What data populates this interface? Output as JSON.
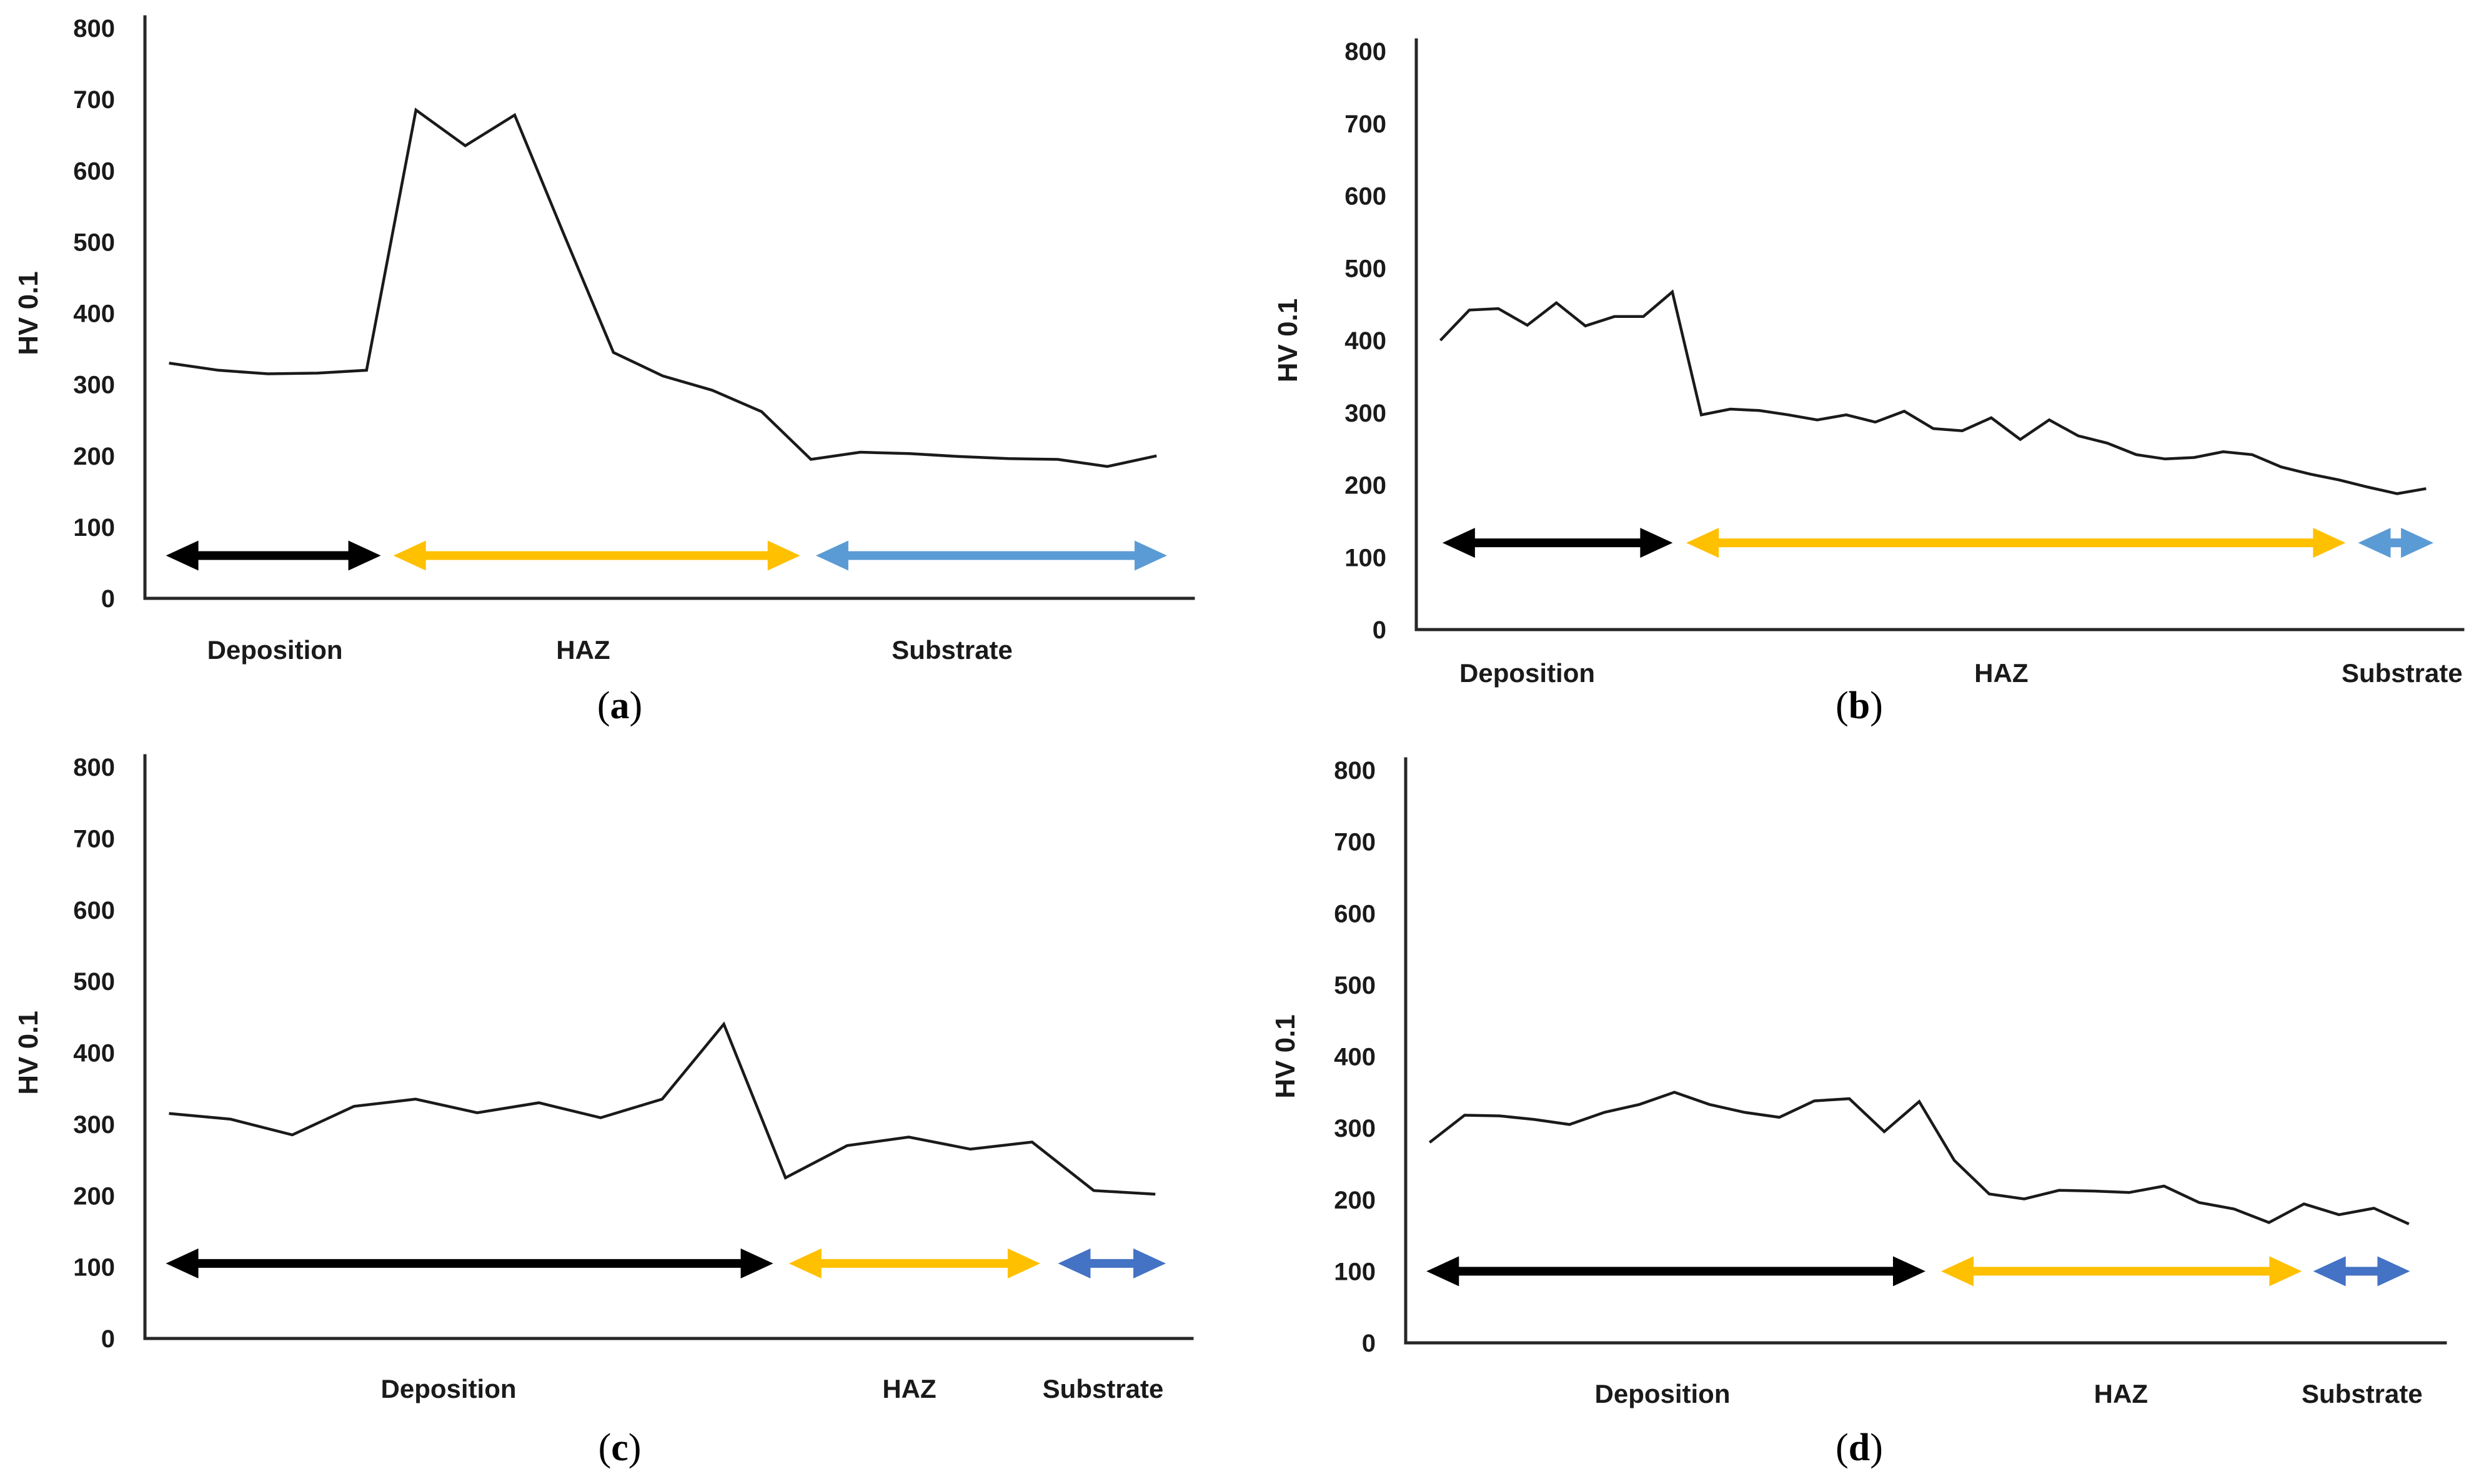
{
  "figure": {
    "description": "Microhardness profiles across deposition, heat affected zone and substrate",
    "y_axis_title": "HV 0.1",
    "zone_names": [
      "Deposition",
      "HAZ",
      "Substrate"
    ],
    "colors": {
      "series_line": "#1a1a1a",
      "deposition_arrow": "#000000",
      "haz_arrow": "#FFC000",
      "substrate_arrow_light": "#5B9BD5",
      "substrate_arrow_dark": "#4472C4"
    }
  },
  "chart_data": [
    {
      "id": "a",
      "type": "line",
      "title": "(a)",
      "caption": {
        "open": "(",
        "letter": "a",
        "close": ")"
      },
      "ylabel": "HV 0.1",
      "ylim": [
        0,
        800
      ],
      "yticks": [
        0,
        100,
        200,
        300,
        400,
        500,
        600,
        700,
        800
      ],
      "grid": false,
      "legend": "none",
      "values": [
        330,
        320,
        315,
        316,
        320,
        685,
        635,
        678,
        510,
        345,
        312,
        292,
        262,
        195,
        205,
        203,
        199,
        196,
        195,
        185,
        200
      ],
      "arrow_value": 60,
      "zones": [
        {
          "label": "Deposition",
          "color": "#000000",
          "start": 0.02,
          "end": 0.225,
          "label_pos": 0.124
        },
        {
          "label": "HAZ",
          "color": "#FFC000",
          "start": 0.237,
          "end": 0.625,
          "label_pos": 0.418
        },
        {
          "label": "Substrate",
          "color": "#5B9BD5",
          "start": 0.64,
          "end": 0.975,
          "label_pos": 0.77
        }
      ]
    },
    {
      "id": "b",
      "type": "line",
      "title": "(b)",
      "caption": {
        "open": "(",
        "letter": "b",
        "close": ")"
      },
      "ylabel": "HV 0.1",
      "ylim": [
        0,
        800
      ],
      "yticks": [
        0,
        100,
        200,
        300,
        400,
        500,
        600,
        700,
        800
      ],
      "grid": false,
      "legend": "none",
      "values": [
        400,
        442,
        444,
        421,
        452,
        420,
        433,
        433,
        467,
        297,
        305,
        303,
        297,
        290,
        297,
        287,
        302,
        278,
        275,
        293,
        263,
        290,
        268,
        258,
        242,
        236,
        238,
        246,
        242,
        225,
        215,
        207,
        197,
        188,
        195
      ],
      "arrow_value": 120,
      "zones": [
        {
          "label": "Deposition",
          "color": "#000000",
          "start": 0.025,
          "end": 0.245,
          "label_pos": 0.106
        },
        {
          "label": "HAZ",
          "color": "#FFC000",
          "start": 0.258,
          "end": 0.888,
          "label_pos": 0.559
        },
        {
          "label": "Substrate",
          "color": "#5B9BD5",
          "start": 0.9,
          "end": 0.972,
          "label_pos": 0.942
        }
      ]
    },
    {
      "id": "c",
      "type": "line",
      "title": "(c)",
      "caption": {
        "open": "(",
        "letter": "c",
        "close": ")"
      },
      "ylabel": "HV 0.1",
      "ylim": [
        0,
        800
      ],
      "yticks": [
        0,
        100,
        200,
        300,
        400,
        500,
        600,
        700,
        800
      ],
      "grid": false,
      "legend": "none",
      "values": [
        315,
        307,
        285,
        325,
        335,
        316,
        330,
        309,
        335,
        440,
        225,
        270,
        282,
        265,
        275,
        207,
        202
      ],
      "arrow_value": 105,
      "zones": [
        {
          "label": "Deposition",
          "color": "#000000",
          "start": 0.02,
          "end": 0.6,
          "label_pos": 0.29
        },
        {
          "label": "HAZ",
          "color": "#FFC000",
          "start": 0.615,
          "end": 0.855,
          "label_pos": 0.73
        },
        {
          "label": "Substrate",
          "color": "#4472C4",
          "start": 0.872,
          "end": 0.975,
          "label_pos": 0.915
        }
      ]
    },
    {
      "id": "d",
      "type": "line",
      "title": "(d)",
      "caption": {
        "open": "(",
        "letter": "d",
        "close": ")"
      },
      "ylabel": "HV 0.1",
      "ylim": [
        0,
        800
      ],
      "yticks": [
        0,
        100,
        200,
        300,
        400,
        500,
        600,
        700,
        800
      ],
      "grid": false,
      "legend": "none",
      "values": [
        280,
        318,
        317,
        312,
        305,
        322,
        333,
        350,
        333,
        322,
        315,
        338,
        341,
        295,
        337,
        255,
        208,
        201,
        213,
        212,
        210,
        219,
        196,
        187,
        168,
        194,
        179,
        188,
        166
      ],
      "arrow_value": 100,
      "zones": [
        {
          "label": "Deposition",
          "color": "#000000",
          "start": 0.02,
          "end": 0.5,
          "label_pos": 0.247
        },
        {
          "label": "HAZ",
          "color": "#FFC000",
          "start": 0.515,
          "end": 0.862,
          "label_pos": 0.688
        },
        {
          "label": "Substrate",
          "color": "#4472C4",
          "start": 0.873,
          "end": 0.966,
          "label_pos": 0.92
        }
      ]
    }
  ]
}
